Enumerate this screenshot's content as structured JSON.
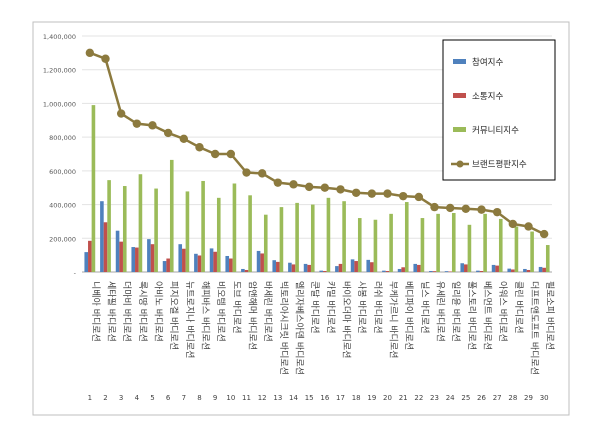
{
  "chart_data": {
    "type": "bar",
    "categories": [
      "1",
      "2",
      "3",
      "4",
      "5",
      "6",
      "7",
      "8",
      "9",
      "10",
      "11",
      "12",
      "13",
      "14",
      "15",
      "16",
      "17",
      "18",
      "19",
      "20",
      "21",
      "22",
      "23",
      "24",
      "25",
      "26",
      "27",
      "28",
      "29",
      "30"
    ],
    "brands": [
      "니베아 바디로션",
      "세타필 바디로션",
      "더마비 바디로션",
      "록시땅 바디로션",
      "아비노 바디로션",
      "피지오겔 바디로션",
      "뉴트로지나 바디로션",
      "해피바스 바디로션",
      "비오템 바디로션",
      "도브 바디로션",
      "암앤해머 바디로션",
      "바세린 바디로션",
      "빅토리아시크릿 바디로션",
      "엘리자베스아덴 바디로션",
      "쿤달 바디로션",
      "카밀 바디로션",
      "바이오더마 바디로션",
      "사봉 바디로션",
      "러쉬 바디로션",
      "부케가르니 바디로션",
      "베디파이 바디로션",
      "닐스 바디로션",
      "유세린 바디로션",
      "일리윤 바디로션",
      "풀스토리 바디로션",
      "베스먼트 바디로션",
      "아워스 바디로션",
      "클린 바디로션",
      "더프트앤도프트 바디로션",
      "필로소피 바디로션"
    ],
    "series": [
      {
        "name": "참여지수",
        "color": "#4f81bd",
        "values": [
          118000,
          420000,
          245000,
          148000,
          195000,
          65000,
          165000,
          108000,
          140000,
          95000,
          18000,
          125000,
          70000,
          55000,
          48000,
          8000,
          35000,
          75000,
          72000,
          8000,
          18000,
          48000,
          6000,
          5000,
          52000,
          8000,
          42000,
          20000,
          18000,
          30000
        ]
      },
      {
        "name": "소통지수",
        "color": "#c0504d",
        "values": [
          185000,
          295000,
          180000,
          145000,
          165000,
          80000,
          138000,
          98000,
          120000,
          80000,
          12000,
          110000,
          60000,
          45000,
          42000,
          6000,
          48000,
          65000,
          58000,
          6000,
          28000,
          42000,
          5000,
          3000,
          45000,
          6000,
          38000,
          15000,
          12000,
          25000
        ]
      },
      {
        "name": "커뮤니티지수",
        "color": "#9bbb59",
        "values": [
          990000,
          545000,
          510000,
          580000,
          495000,
          665000,
          478000,
          540000,
          440000,
          525000,
          455000,
          340000,
          385000,
          410000,
          400000,
          440000,
          420000,
          320000,
          310000,
          345000,
          415000,
          320000,
          345000,
          350000,
          280000,
          345000,
          315000,
          270000,
          240000,
          160000
        ]
      },
      {
        "name": "브랜드평판지수",
        "color": "#8c7a3e",
        "values": [
          1300000,
          1265000,
          940000,
          880000,
          870000,
          825000,
          790000,
          740000,
          700000,
          700000,
          590000,
          585000,
          530000,
          520000,
          505000,
          500000,
          490000,
          470000,
          465000,
          465000,
          450000,
          445000,
          385000,
          380000,
          375000,
          370000,
          355000,
          285000,
          270000,
          225000
        ]
      }
    ],
    "yticks": [
      "-",
      "200,000",
      "400,000",
      "600,000",
      "800,000",
      "1,000,000",
      "1,200,000",
      "1,400,000"
    ],
    "ylim": [
      0,
      1400000
    ],
    "legend": "top-right",
    "grid": true
  }
}
